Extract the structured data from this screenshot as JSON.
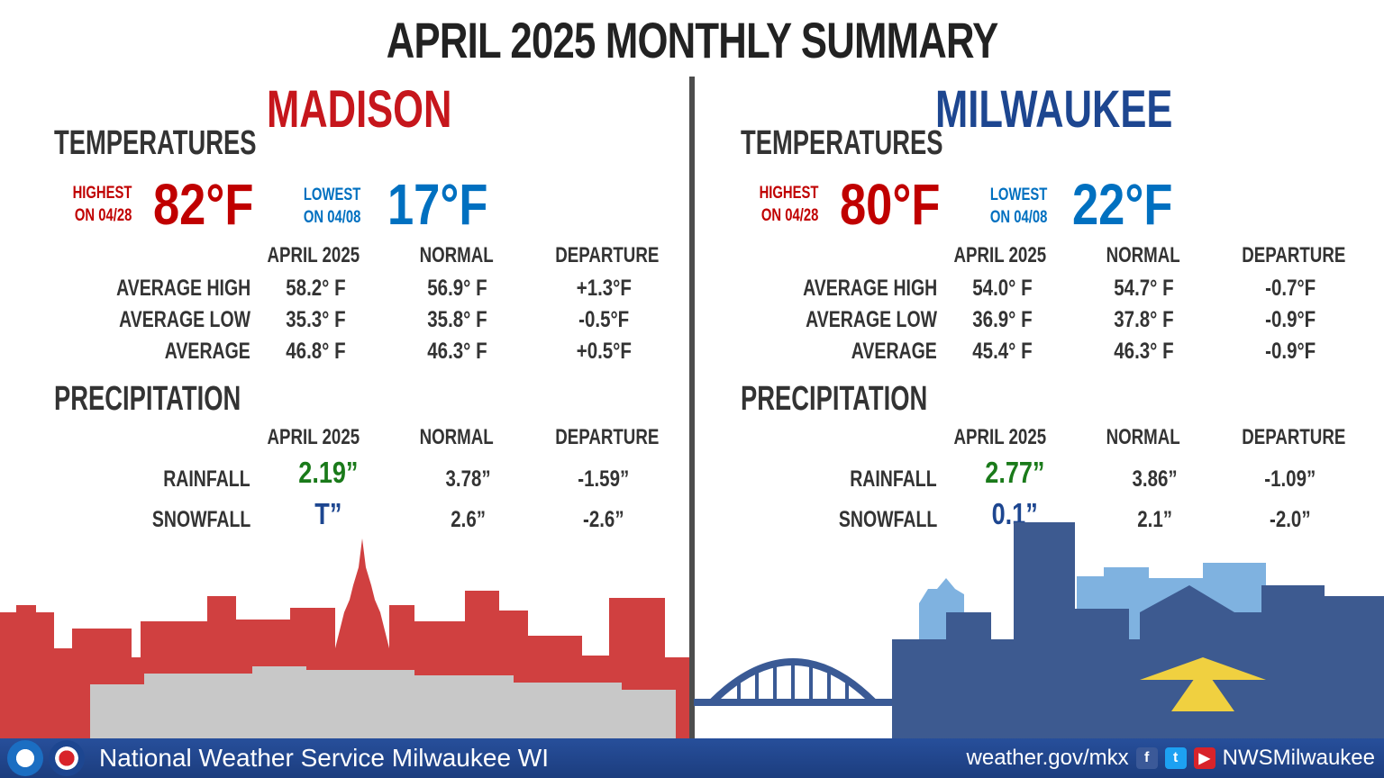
{
  "title": "APRIL 2025 MONTHLY SUMMARY",
  "columns": {
    "month": "APRIL 2025",
    "normal": "NORMAL",
    "departure": "DEPARTURE"
  },
  "sections": {
    "temperatures": "TEMPERATURES",
    "precipitation": "PRECIPITATION"
  },
  "row_labels": {
    "avg_high": "AVERAGE HIGH",
    "avg_low": "AVERAGE LOW",
    "avg": "AVERAGE",
    "rainfall": "RAINFALL",
    "snowfall": "SNOWFALL"
  },
  "colors": {
    "madison": "#c6161c",
    "milwaukee": "#1d4690",
    "high": "#c00000",
    "low": "#0070c0",
    "rain": "#1a7a1a",
    "snow": "#1d4690"
  },
  "madison": {
    "name": "MADISON",
    "highest_label_1": "HIGHEST",
    "highest_label_2": "ON 04/28",
    "highest": "82°F",
    "lowest_label_1": "LOWEST",
    "lowest_label_2": "ON 04/08",
    "lowest": "17°F",
    "temps": [
      [
        "58.2° F",
        "56.9° F",
        "+1.3°F"
      ],
      [
        "35.3° F",
        "35.8° F",
        "-0.5°F"
      ],
      [
        "46.8° F",
        "46.3° F",
        "+0.5°F"
      ]
    ],
    "rain": [
      "2.19”",
      "3.78”",
      "-1.59”"
    ],
    "snow": [
      "T”",
      "2.6”",
      "-2.6”"
    ]
  },
  "milwaukee": {
    "name": "MILWAUKEE",
    "highest_label_1": "HIGHEST",
    "highest_label_2": "ON 04/28",
    "highest": "80°F",
    "lowest_label_1": "LOWEST",
    "lowest_label_2": "ON 04/08",
    "lowest": "22°F",
    "temps": [
      [
        "54.0° F",
        "54.7° F",
        "-0.7°F"
      ],
      [
        "36.9° F",
        "37.8° F",
        "-0.9°F"
      ],
      [
        "45.4° F",
        "46.3° F",
        "-0.9°F"
      ]
    ],
    "rain": [
      "2.77”",
      "3.86”",
      "-1.09”"
    ],
    "snow": [
      "0.1”",
      "2.1”",
      "-2.0”"
    ]
  },
  "footer": {
    "org": "National Weather Service Milwaukee WI",
    "url": "weather.gov/mkx",
    "handle": "NWSMilwaukee",
    "icons": [
      "noaa-logo",
      "nws-logo",
      "facebook-icon",
      "twitter-icon",
      "youtube-icon"
    ]
  }
}
